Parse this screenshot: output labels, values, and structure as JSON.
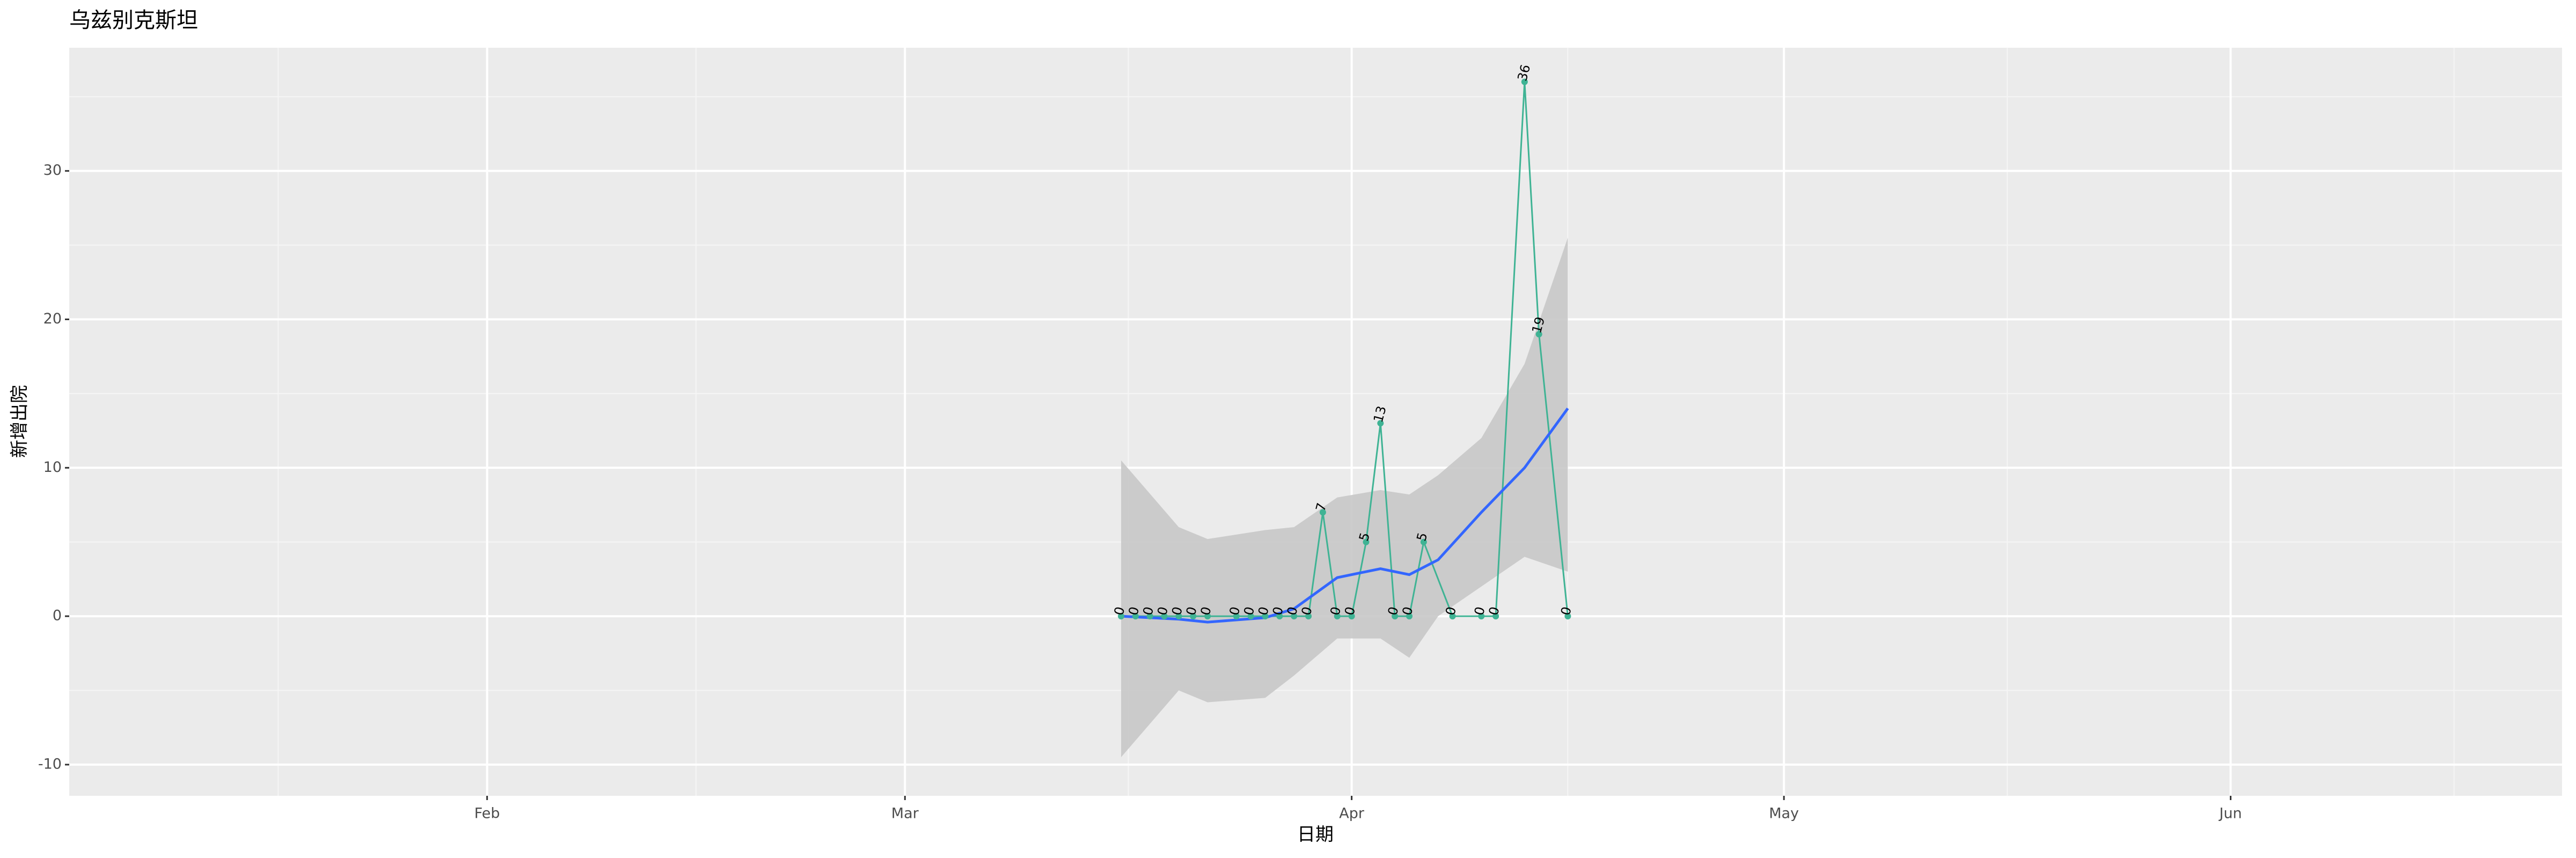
{
  "chart_data": {
    "type": "line",
    "title": "乌兹别克斯坦",
    "xlabel": "日期",
    "ylabel": "新增出院",
    "x": [
      "03-16",
      "03-17",
      "03-18",
      "03-19",
      "03-20",
      "03-21",
      "03-22",
      "03-24",
      "03-25",
      "03-26",
      "03-27",
      "03-28",
      "03-29",
      "03-30",
      "03-31",
      "04-01",
      "04-02",
      "04-03",
      "04-04",
      "04-05",
      "04-06",
      "04-08",
      "04-10",
      "04-11",
      "04-13",
      "04-14",
      "04-16"
    ],
    "series": [
      {
        "color": "#3fb394",
        "values": [
          0,
          0,
          0,
          0,
          0,
          0,
          0,
          0,
          0,
          0,
          0,
          0,
          0,
          7,
          0,
          0,
          5,
          13,
          0,
          0,
          5,
          0,
          0,
          0,
          36,
          19,
          0
        ]
      }
    ],
    "smooth": {
      "color": "#3366ff",
      "band_color": "#c8c8c8",
      "x": [
        "03-16",
        "03-20",
        "03-22",
        "03-26",
        "03-28",
        "03-31",
        "04-03",
        "04-05",
        "04-07",
        "04-10",
        "04-13",
        "04-16"
      ],
      "values": [
        0,
        -0.2,
        -0.4,
        -0.1,
        0.5,
        2.6,
        3.2,
        2.8,
        3.8,
        7,
        10,
        14
      ],
      "lower": [
        -9.5,
        -5,
        -5.8,
        -5.5,
        -4,
        -1.5,
        -1.5,
        -2.8,
        0,
        2,
        4,
        3
      ],
      "upper": [
        10.5,
        6,
        5.2,
        5.8,
        6,
        8,
        8.5,
        8.2,
        9.5,
        12,
        17,
        25.5
      ]
    },
    "xlim": [
      "01-03",
      "06-24"
    ],
    "xticks": [
      {
        "value": "02-01",
        "label": "Feb"
      },
      {
        "value": "03-01",
        "label": "Mar"
      },
      {
        "value": "04-01",
        "label": "Apr"
      },
      {
        "value": "05-01",
        "label": "May"
      },
      {
        "value": "06-01",
        "label": "Jun"
      }
    ],
    "ylim": [
      -12.1,
      38.3
    ],
    "yticks": [
      -10,
      0,
      10,
      20,
      30
    ],
    "grid": true
  }
}
